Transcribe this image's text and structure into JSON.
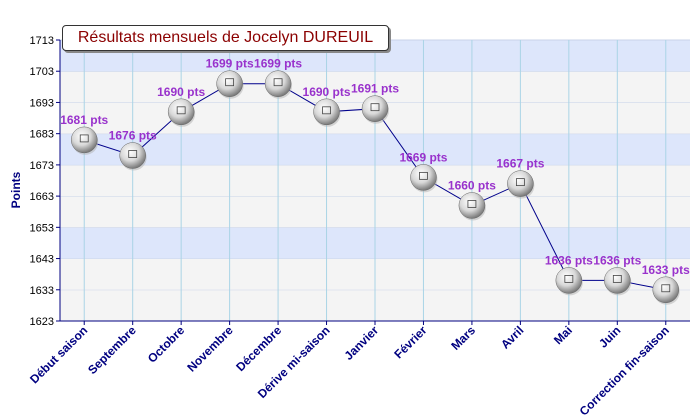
{
  "chart_data": {
    "type": "line",
    "title": "Résultats mensuels de Jocelyn DUREUIL",
    "xlabel": "",
    "ylabel": "Points",
    "ylim": [
      1623,
      1713
    ],
    "yticks": [
      1623,
      1633,
      1643,
      1653,
      1663,
      1673,
      1683,
      1693,
      1703,
      1713
    ],
    "grid": true,
    "legend": "none",
    "categories": [
      "Début saison",
      "Septembre",
      "Octobre",
      "Novembre",
      "Décembre",
      "Dérive mi-saison",
      "Janvier",
      "Février",
      "Mars",
      "Avril",
      "Mai",
      "Juin",
      "Correction fin-saison"
    ],
    "series": [
      {
        "values": [
          1681,
          1676,
          1690,
          1699,
          1699,
          1690,
          1691,
          1669,
          1660,
          1667,
          1636,
          1636,
          1633
        ]
      }
    ],
    "data_labels": [
      "1681 pts",
      "1676 pts",
      "1690 pts",
      "1699 pts",
      "1699 pts",
      "1690 pts",
      "1691 pts",
      "1669 pts",
      "1660 pts",
      "1667 pts",
      "1636 pts",
      "1636 pts",
      "1633 pts"
    ],
    "colors": {
      "line": "#00008b",
      "label": "#9932cc",
      "title": "#8b0000",
      "band": "#dde6fb",
      "band_alt": "#f4f4f4",
      "axis_label": "#000080",
      "grid": "#aad4e6"
    }
  }
}
